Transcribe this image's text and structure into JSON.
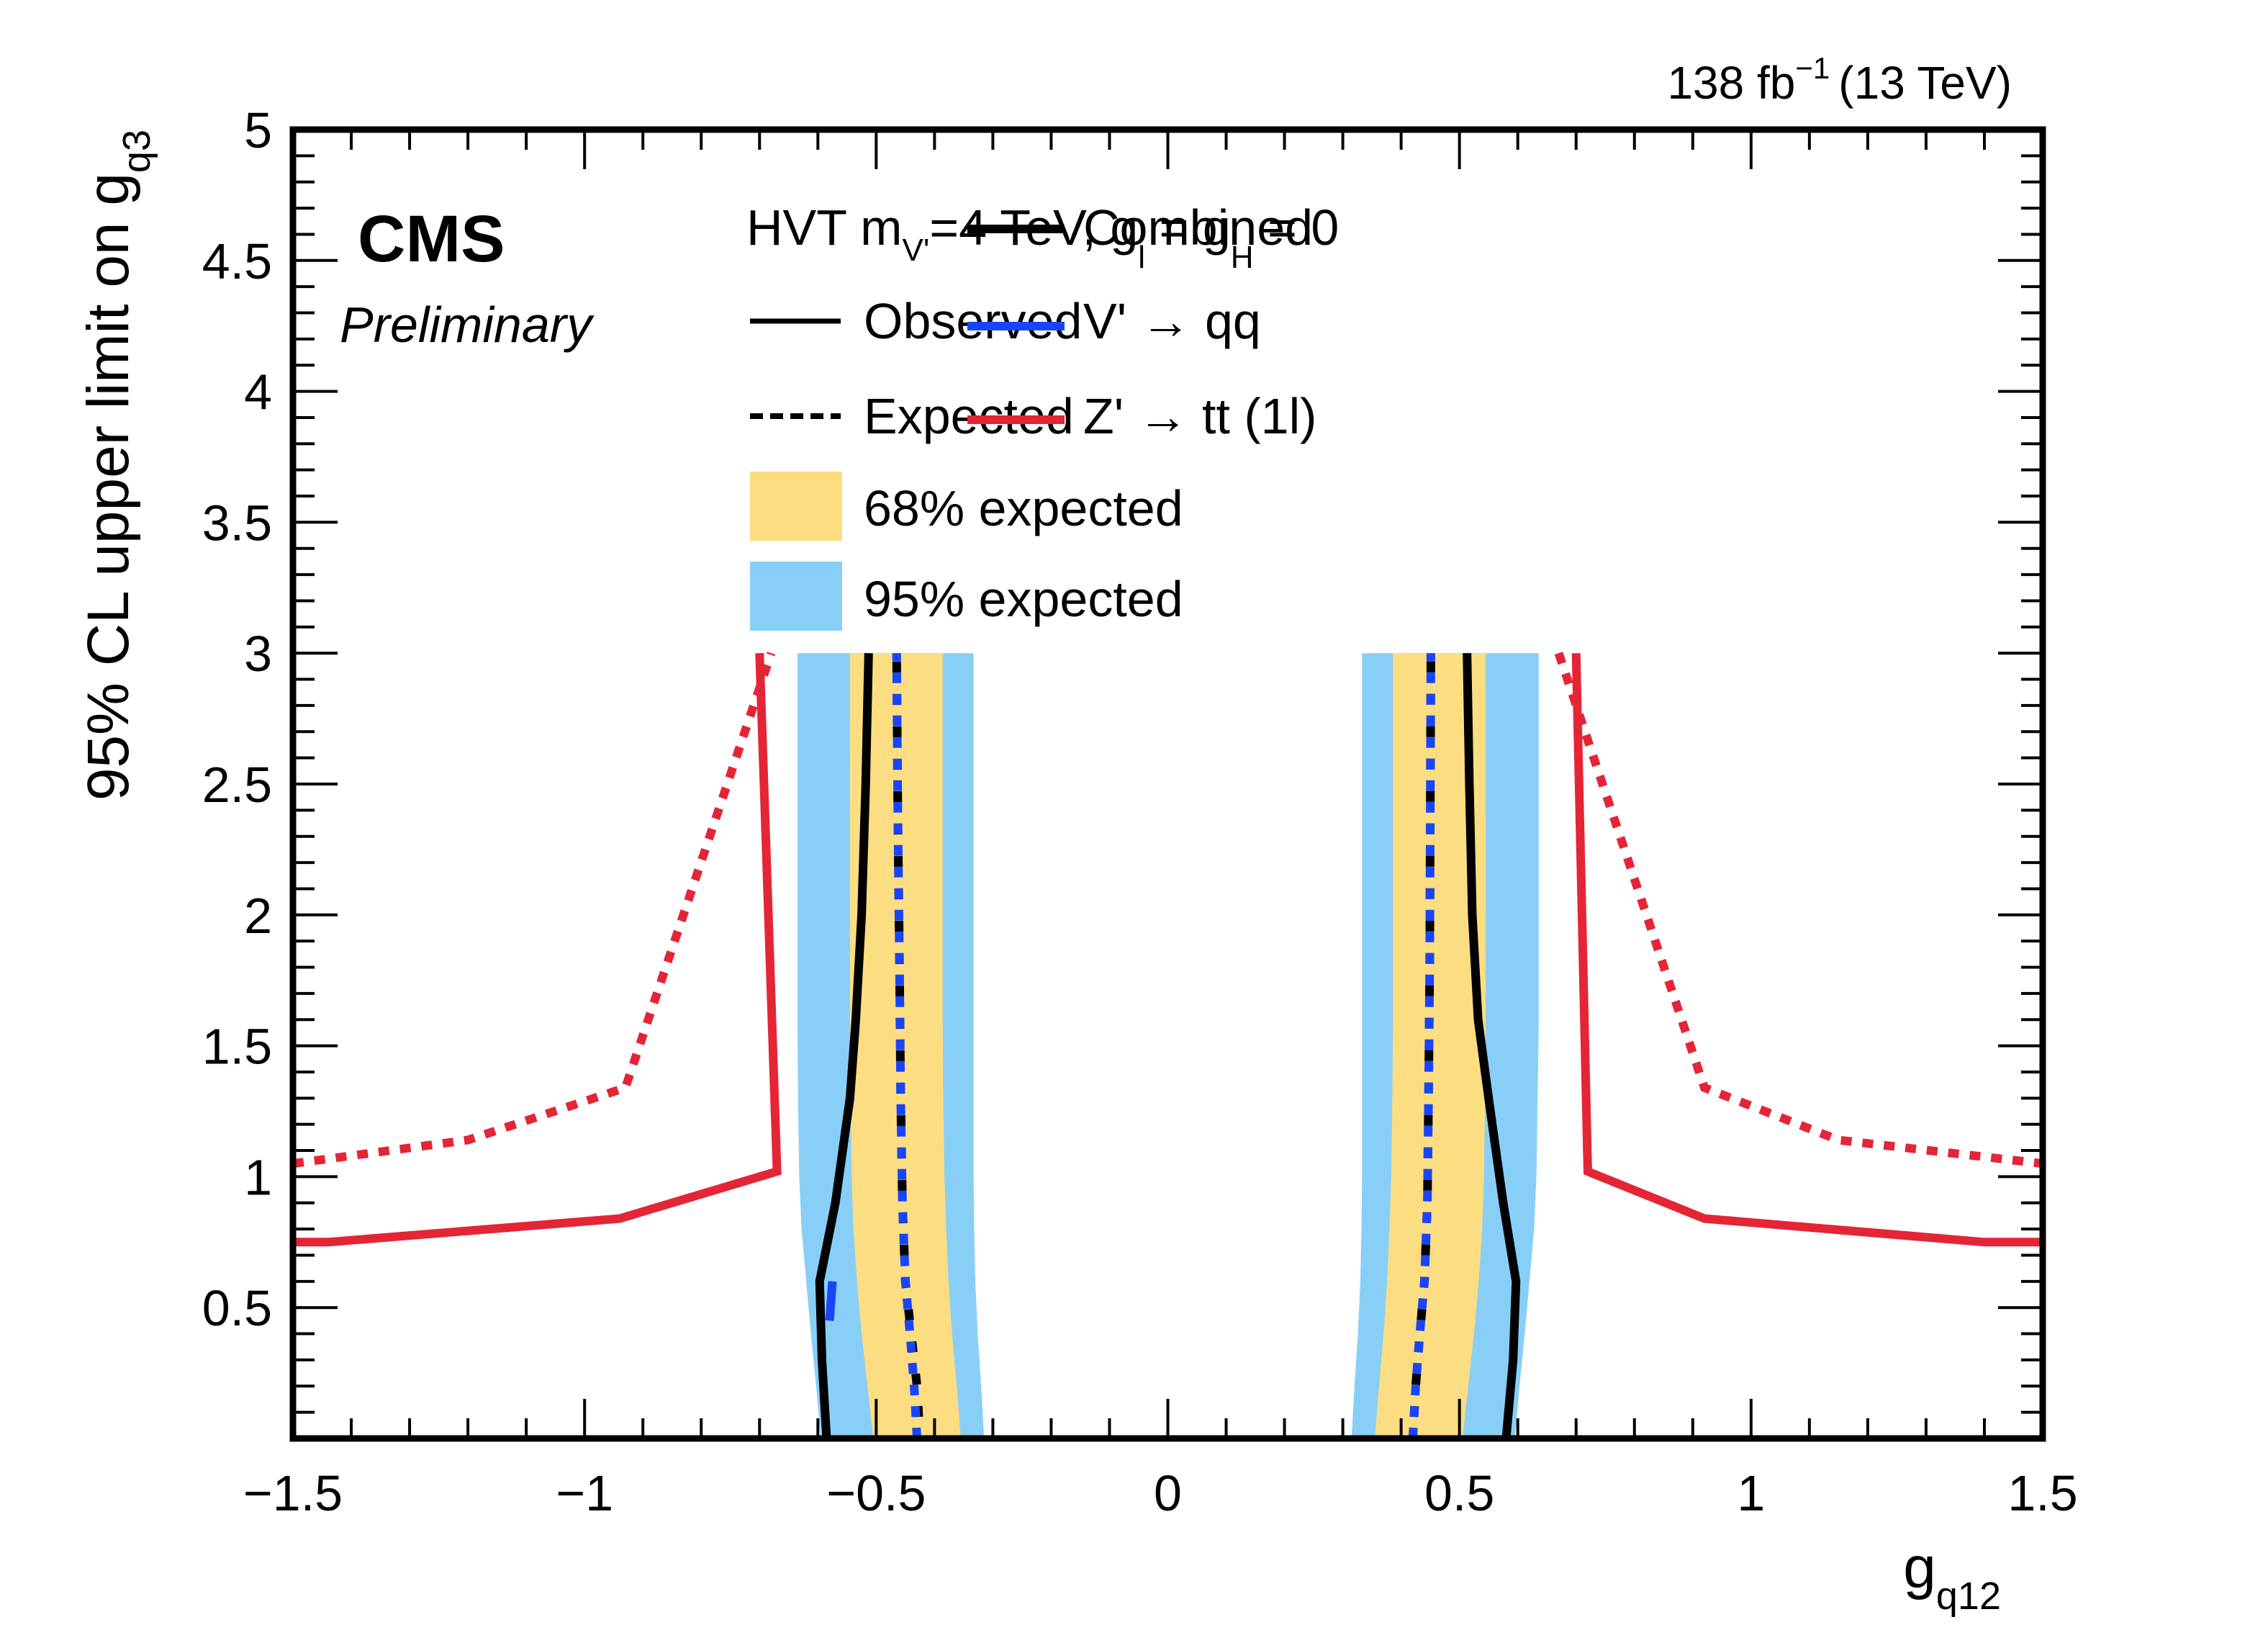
{
  "chart_data": {
    "type": "line",
    "title": "",
    "experiment": "CMS",
    "status": "Preliminary",
    "lumi_label": "138 fb",
    "lumi_sup": "−1",
    "energy_label": "(13 TeV)",
    "xlabel": "g",
    "xlabel_sub": "q12",
    "ylabel": "95% CL upper limit on g",
    "ylabel_sub": "q3",
    "xlim": [
      -1.5,
      1.5
    ],
    "ylim": [
      0,
      5
    ],
    "x_ticks": [
      -1.5,
      -1,
      -0.5,
      0,
      0.5,
      1,
      1.5
    ],
    "x_tick_labels": [
      "−1.5",
      "−1",
      "−0.5",
      "0",
      "0.5",
      "1",
      "1.5"
    ],
    "y_ticks": [
      0.5,
      1,
      1.5,
      2,
      2.5,
      3,
      3.5,
      4,
      4.5,
      5
    ],
    "y_tick_labels": [
      "0.5",
      "1",
      "1.5",
      "2",
      "2.5",
      "3",
      "3.5",
      "4",
      "4.5",
      "5"
    ],
    "grid": false,
    "legend": {
      "placement": "top",
      "header": "HVT m",
      "header_sub": "V'",
      "header_rest": "=4 TeV, g",
      "header_sub2": "l",
      "header_mid": " = g",
      "header_sub3": "H",
      "header_end": " = 0",
      "entries": [
        {
          "label": "Observed",
          "style": "solid",
          "color": "#000000"
        },
        {
          "label": "Expected",
          "style": "dotted",
          "color": "#000000"
        },
        {
          "label": "68% expected",
          "style": "band",
          "color": "#fddd82"
        },
        {
          "label": "95% expected",
          "style": "band",
          "color": "#88cff8"
        },
        {
          "label": "Combined",
          "style": "solid-thick",
          "color": "#000000"
        },
        {
          "label": "V' → qq",
          "style": "solid",
          "color": "#1845fb"
        },
        {
          "label": "Z' → tt (1l)",
          "style": "solid",
          "color": "#e42536"
        }
      ]
    },
    "colors": {
      "combined": "#000000",
      "vqq": "#1845fb",
      "ztt": "#e42536",
      "band68": "#fddd82",
      "band95": "#88cff8"
    },
    "bands": {
      "y": [
        0.0,
        0.2,
        0.4,
        0.6,
        0.8,
        1.0,
        1.3,
        1.6,
        2.0,
        2.5,
        3.0
      ],
      "left": {
        "b95_lo": [
          -0.595,
          -0.603,
          -0.612,
          -0.62,
          -0.628,
          -0.632,
          -0.634,
          -0.635,
          -0.635,
          -0.635,
          -0.635
        ],
        "b68_lo": [
          -0.505,
          -0.515,
          -0.525,
          -0.533,
          -0.539,
          -0.542,
          -0.544,
          -0.545,
          -0.545,
          -0.545,
          -0.545
        ],
        "b68_hi": [
          -0.355,
          -0.362,
          -0.37,
          -0.376,
          -0.38,
          -0.383,
          -0.385,
          -0.386,
          -0.386,
          -0.386,
          -0.386
        ],
        "b95_hi": [
          -0.315,
          -0.32,
          -0.326,
          -0.33,
          -0.332,
          -0.333,
          -0.333,
          -0.333,
          -0.333,
          -0.333,
          -0.333
        ]
      },
      "right": {
        "b95_lo": [
          0.315,
          0.32,
          0.326,
          0.33,
          0.332,
          0.333,
          0.333,
          0.333,
          0.333,
          0.333,
          0.333
        ],
        "b68_lo": [
          0.355,
          0.362,
          0.37,
          0.376,
          0.38,
          0.383,
          0.385,
          0.386,
          0.386,
          0.386,
          0.386
        ],
        "b68_hi": [
          0.505,
          0.515,
          0.525,
          0.533,
          0.539,
          0.542,
          0.544,
          0.545,
          0.545,
          0.545,
          0.545
        ],
        "b95_hi": [
          0.595,
          0.603,
          0.612,
          0.62,
          0.628,
          0.632,
          0.634,
          0.636,
          0.636,
          0.636,
          0.636
        ]
      }
    },
    "series": [
      {
        "name": "Combined observed (left)",
        "style": "solid",
        "color": "#000000",
        "points": [
          [
            -0.585,
            0.0
          ],
          [
            -0.593,
            0.3
          ],
          [
            -0.597,
            0.6
          ],
          [
            -0.57,
            0.9
          ],
          [
            -0.545,
            1.3
          ],
          [
            -0.535,
            1.6
          ],
          [
            -0.525,
            2.0
          ],
          [
            -0.518,
            2.5
          ],
          [
            -0.513,
            3.0
          ]
        ]
      },
      {
        "name": "Combined observed (right)",
        "style": "solid",
        "color": "#000000",
        "points": [
          [
            0.58,
            0.0
          ],
          [
            0.592,
            0.3
          ],
          [
            0.597,
            0.6
          ],
          [
            0.575,
            0.9
          ],
          [
            0.55,
            1.3
          ],
          [
            0.532,
            1.6
          ],
          [
            0.522,
            2.0
          ],
          [
            0.517,
            2.5
          ],
          [
            0.513,
            3.0
          ]
        ]
      },
      {
        "name": "Combined expected (left)",
        "style": "dotted",
        "color": "#000000",
        "points": [
          [
            -0.425,
            0.0
          ],
          [
            -0.43,
            0.2
          ],
          [
            -0.44,
            0.4
          ],
          [
            -0.45,
            0.6
          ],
          [
            -0.455,
            0.9
          ],
          [
            -0.458,
            1.3
          ],
          [
            -0.46,
            1.8
          ],
          [
            -0.463,
            2.4
          ],
          [
            -0.465,
            3.0
          ]
        ]
      },
      {
        "name": "V'→qq expected (left)",
        "style": "dotted",
        "color": "#1845fb",
        "points": [
          [
            -0.43,
            0.0
          ],
          [
            -0.435,
            0.2
          ],
          [
            -0.442,
            0.4
          ],
          [
            -0.45,
            0.6
          ],
          [
            -0.455,
            0.9
          ],
          [
            -0.458,
            1.3
          ],
          [
            -0.46,
            1.8
          ],
          [
            -0.463,
            2.4
          ],
          [
            -0.465,
            3.0
          ]
        ]
      },
      {
        "name": "V'→qq observed (left)",
        "style": "solid",
        "color": "#1845fb",
        "points": [
          [
            -0.58,
            0.45
          ],
          [
            -0.575,
            0.6
          ]
        ]
      },
      {
        "name": "Combined expected (right)",
        "style": "dotted",
        "color": "#000000",
        "points": [
          [
            0.42,
            0.0
          ],
          [
            0.425,
            0.2
          ],
          [
            0.432,
            0.4
          ],
          [
            0.44,
            0.6
          ],
          [
            0.445,
            0.9
          ],
          [
            0.447,
            1.3
          ],
          [
            0.449,
            1.8
          ],
          [
            0.45,
            2.4
          ],
          [
            0.451,
            3.0
          ]
        ]
      },
      {
        "name": "V'→qq expected (right)",
        "style": "dotted",
        "color": "#1845fb",
        "points": [
          [
            0.42,
            0.0
          ],
          [
            0.425,
            0.2
          ],
          [
            0.432,
            0.4
          ],
          [
            0.44,
            0.6
          ],
          [
            0.445,
            0.9
          ],
          [
            0.447,
            1.3
          ],
          [
            0.449,
            1.8
          ],
          [
            0.45,
            2.4
          ],
          [
            0.451,
            3.0
          ]
        ]
      },
      {
        "name": "Z'→tt (1l) observed (left)",
        "style": "solid",
        "color": "#e42536",
        "points": [
          [
            -1.5,
            0.75
          ],
          [
            -1.44,
            0.75
          ],
          [
            -0.94,
            0.84
          ],
          [
            -0.67,
            1.02
          ],
          [
            -0.7,
            3.0
          ]
        ]
      },
      {
        "name": "Z'→tt (1l) expected (left)",
        "style": "dotted",
        "color": "#e42536",
        "points": [
          [
            -1.5,
            1.05
          ],
          [
            -1.2,
            1.14
          ],
          [
            -0.93,
            1.34
          ],
          [
            -0.68,
            3.0
          ]
        ]
      },
      {
        "name": "Z'→tt (1l) observed (right)",
        "style": "solid",
        "color": "#e42536",
        "points": [
          [
            0.7,
            3.0
          ],
          [
            0.72,
            1.02
          ],
          [
            0.92,
            0.84
          ],
          [
            1.4,
            0.75
          ],
          [
            1.5,
            0.75
          ]
        ]
      },
      {
        "name": "Z'→tt (1l) expected (right)",
        "style": "dotted",
        "color": "#e42536",
        "points": [
          [
            0.67,
            3.0
          ],
          [
            0.92,
            1.34
          ],
          [
            1.15,
            1.14
          ],
          [
            1.5,
            1.05
          ]
        ]
      }
    ]
  }
}
